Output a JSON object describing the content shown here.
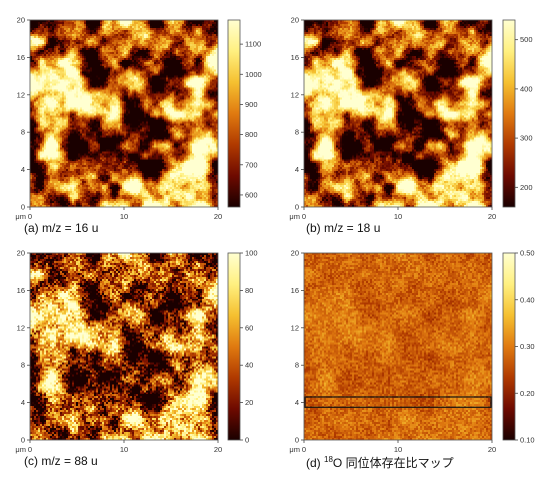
{
  "figure": {
    "x_unit_label": "μm"
  },
  "chart_data": [
    {
      "type": "heatmap",
      "caption": "(a) m/z = 16 u",
      "x_ticks": [
        0,
        10,
        20
      ],
      "y_ticks": [
        0,
        4,
        8,
        12,
        16,
        20
      ],
      "xlim": [
        0,
        20
      ],
      "ylim": [
        0,
        20
      ],
      "colorbar_ticks": [
        600,
        700,
        800,
        900,
        1000,
        1100
      ],
      "colorbar_tick_labels": [
        "600",
        "700",
        "800",
        "900",
        "1000",
        "1100"
      ],
      "colorbar_range": [
        560,
        1180
      ],
      "colormap": "afmhot",
      "pattern": "blotchy"
    },
    {
      "type": "heatmap",
      "caption": "(b) m/z = 18 u",
      "x_ticks": [
        0,
        10,
        20
      ],
      "y_ticks": [
        0,
        4,
        8,
        12,
        16,
        20
      ],
      "xlim": [
        0,
        20
      ],
      "ylim": [
        0,
        20
      ],
      "colorbar_ticks": [
        200,
        300,
        400,
        500
      ],
      "colorbar_tick_labels": [
        "200",
        "300",
        "400",
        "500"
      ],
      "colorbar_range": [
        160,
        540
      ],
      "colormap": "afmhot",
      "pattern": "blotchy"
    },
    {
      "type": "heatmap",
      "caption": "(c) m/z = 88 u",
      "x_ticks": [
        0,
        10,
        20
      ],
      "y_ticks": [
        0,
        4,
        8,
        12,
        16,
        20
      ],
      "xlim": [
        0,
        20
      ],
      "ylim": [
        0,
        20
      ],
      "colorbar_ticks": [
        0,
        20,
        40,
        60,
        80,
        100
      ],
      "colorbar_tick_labels": [
        "0",
        "20",
        "40",
        "60",
        "80",
        "100"
      ],
      "colorbar_range": [
        0,
        100
      ],
      "colormap": "afmhot",
      "pattern": "speckled"
    },
    {
      "type": "heatmap",
      "caption_prefix": "(d) ",
      "caption_sup": "18",
      "caption_main": "O 同位体存在比マップ",
      "x_ticks": [
        0,
        10,
        20
      ],
      "y_ticks": [
        0,
        4,
        8,
        12,
        16,
        20
      ],
      "xlim": [
        0,
        20
      ],
      "ylim": [
        0,
        20
      ],
      "colorbar_ticks": [
        0.1,
        0.2,
        0.3,
        0.4,
        0.5
      ],
      "colorbar_tick_labels": [
        "0.10",
        "0.20",
        "0.30",
        "0.40",
        "0.50"
      ],
      "colorbar_range": [
        0.1,
        0.5
      ],
      "colormap": "afmhot",
      "pattern": "uniform",
      "annotation_box": {
        "x": [
          0,
          20
        ],
        "y": [
          3.5,
          4.6
        ]
      }
    }
  ],
  "colors": {
    "cmap_stops": [
      "#1a0000",
      "#6e0a00",
      "#b03a00",
      "#e07a10",
      "#f5c030",
      "#fff080",
      "#ffffd0"
    ],
    "annotation_box": "#111111"
  }
}
